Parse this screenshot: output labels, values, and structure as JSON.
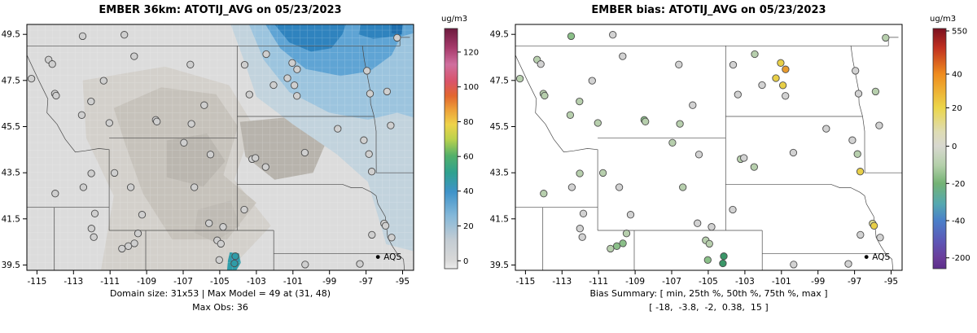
{
  "panels": {
    "left": {
      "title": "EMBER 36km: ATOTIJ_AVG on 05/23/2023",
      "caption1": "Domain size: 31x53 | Max Model = 49 at (31, 48)",
      "caption2": "Max Obs: 36"
    },
    "right": {
      "title": "EMBER bias: ATOTIJ_AVG on 05/23/2023",
      "caption1": "Bias Summary: [ min, 25th %, 50th %, 75th %, max ]",
      "caption2": "[ -18,  -3.8,  -2,  0.38,  15 ]"
    }
  },
  "chart_data": {
    "stations_legend": "AQS",
    "units": "ug/m3",
    "maps": [
      {
        "id": "left",
        "svg_id": "svg-left",
        "type": "raster-map",
        "title": "EMBER 36km: ATOTIJ_AVG on 05/23/2023",
        "units": "ug/m3",
        "value_field": "obs",
        "x_ticks": [
          -115,
          -113,
          -111,
          -109,
          -107,
          -105,
          -103,
          -101,
          -99,
          -97,
          -95
        ],
        "y_ticks": [
          39.5,
          41.5,
          43.5,
          45.5,
          47.5,
          49.5
        ],
        "xlim": [
          -115.55,
          -94.4
        ],
        "ylim": [
          39.27,
          49.93
        ],
        "domain_size": "31x53",
        "max_model": 49,
        "max_model_at": "(31, 48)",
        "max_obs": 36,
        "colorbar": {
          "ticks": [
            {
              "label": "0",
              "pos": 0.967
            },
            {
              "label": "20",
              "pos": 0.822
            },
            {
              "label": "40",
              "pos": 0.677
            },
            {
              "label": "60",
              "pos": 0.533
            },
            {
              "label": "80",
              "pos": 0.388
            },
            {
              "label": "100",
              "pos": 0.243
            },
            {
              "label": "120",
              "pos": 0.098
            }
          ],
          "stops": [
            {
              "o": 0,
              "c": "#6d1a3e"
            },
            {
              "o": 0.08,
              "c": "#a63a6b"
            },
            {
              "o": 0.15,
              "c": "#cf6f9e"
            },
            {
              "o": 0.22,
              "c": "#d9536a"
            },
            {
              "o": 0.28,
              "c": "#e2662f"
            },
            {
              "o": 0.34,
              "c": "#eda23a"
            },
            {
              "o": 0.4,
              "c": "#eed34a"
            },
            {
              "o": 0.46,
              "c": "#bcd24c"
            },
            {
              "o": 0.53,
              "c": "#52b06a"
            },
            {
              "o": 0.6,
              "c": "#2fa18f"
            },
            {
              "o": 0.68,
              "c": "#3f93c9"
            },
            {
              "o": 0.78,
              "c": "#85b8d9"
            },
            {
              "o": 0.88,
              "c": "#c3ccd3"
            },
            {
              "o": 0.965,
              "c": "#d8d8d8"
            },
            {
              "o": 1,
              "c": "#ececec"
            }
          ]
        },
        "regions": [
          {
            "color": "#d3d0cb",
            "pts": [
              [
                -112.5,
                47.5
              ],
              [
                -108,
                48.1
              ],
              [
                -104.5,
                47.3
              ],
              [
                -103.2,
                45.6
              ],
              [
                -104.2,
                43.2
              ],
              [
                -102.2,
                41.2
              ],
              [
                -104.5,
                39.27
              ],
              [
                -111.5,
                39.27
              ],
              [
                -110.8,
                42.5
              ],
              [
                -112.3,
                45.0
              ]
            ]
          },
          {
            "color": "#c6c2bb",
            "pts": [
              [
                -110.8,
                46.3
              ],
              [
                -108.2,
                47.2
              ],
              [
                -105.2,
                46.9
              ],
              [
                -104.0,
                45.5
              ],
              [
                -104.8,
                43.4
              ],
              [
                -103.0,
                42.2
              ],
              [
                -104.6,
                40.6
              ],
              [
                -107.6,
                40.6
              ],
              [
                -109.2,
                42.6
              ],
              [
                -110.2,
                44.8
              ]
            ]
          },
          {
            "color": "#b7b3ac",
            "pts": [
              [
                -103.9,
                45.7
              ],
              [
                -101.4,
                45.9
              ],
              [
                -99.2,
                44.8
              ],
              [
                -99.9,
                43.5
              ],
              [
                -102.0,
                43.2
              ],
              [
                -103.6,
                44.2
              ]
            ]
          },
          {
            "color": "#bab6af",
            "pts": [
              [
                -107.9,
                44.9
              ],
              [
                -105.7,
                45.2
              ],
              [
                -104.7,
                44.0
              ],
              [
                -105.9,
                42.9
              ],
              [
                -107.9,
                43.3
              ]
            ]
          },
          {
            "color": "#bfbbb4",
            "pts": [
              [
                -106.2,
                41.9
              ],
              [
                -104.4,
                42.3
              ],
              [
                -103.9,
                41.2
              ],
              [
                -105.3,
                40.5
              ],
              [
                -106.4,
                40.9
              ]
            ]
          },
          {
            "color": "#c2d3dd",
            "pts": [
              [
                -104.4,
                49.93
              ],
              [
                -103.6,
                48.2
              ],
              [
                -103.0,
                46.8
              ],
              [
                -101.0,
                45.6
              ],
              [
                -98.6,
                44.3
              ],
              [
                -96.9,
                43.1
              ],
              [
                -96.3,
                41.5
              ],
              [
                -95.9,
                40.4
              ],
              [
                -94.4,
                40.1
              ],
              [
                -94.4,
                49.93
              ]
            ]
          },
          {
            "color": "#9cc4de",
            "pts": [
              [
                -103.4,
                49.93
              ],
              [
                -102.6,
                48.4
              ],
              [
                -101.2,
                47.0
              ],
              [
                -99.0,
                46.1
              ],
              [
                -96.9,
                45.8
              ],
              [
                -95.3,
                46.1
              ],
              [
                -94.4,
                45.9
              ],
              [
                -94.4,
                49.93
              ]
            ]
          },
          {
            "color": "#5fa4d4",
            "pts": [
              [
                -102.5,
                49.93
              ],
              [
                -101.7,
                48.9
              ],
              [
                -100.3,
                48.0
              ],
              [
                -98.4,
                47.7
              ],
              [
                -96.8,
                47.9
              ],
              [
                -95.6,
                48.6
              ],
              [
                -95.1,
                49.4
              ],
              [
                -94.4,
                49.55
              ],
              [
                -94.4,
                49.93
              ]
            ]
          },
          {
            "color": "#2f83be",
            "pts": [
              [
                -102.0,
                49.93
              ],
              [
                -101.2,
                49.15
              ],
              [
                -100.0,
                48.75
              ],
              [
                -98.9,
                48.9
              ],
              [
                -98.3,
                49.5
              ],
              [
                -98.1,
                49.93
              ]
            ]
          },
          {
            "color": "#2f83be",
            "pts": [
              [
                -97.3,
                49.93
              ],
              [
                -95.0,
                49.93
              ],
              [
                -95.1,
                49.45
              ],
              [
                -96.6,
                49.3
              ],
              [
                -97.4,
                49.5
              ]
            ]
          },
          {
            "color": "#1f6fae",
            "pts": [
              [
                -95.6,
                49.93
              ],
              [
                -95.0,
                49.93
              ],
              [
                -95.05,
                49.5
              ],
              [
                -95.6,
                49.55
              ]
            ]
          },
          {
            "color": "#2f9ca8",
            "pts": [
              [
                -104.45,
                40.05
              ],
              [
                -103.95,
                40.0
              ],
              [
                -103.85,
                39.6
              ],
              [
                -104.1,
                39.27
              ],
              [
                -104.6,
                39.27
              ],
              [
                -104.55,
                39.7
              ]
            ]
          },
          {
            "color": "#3f93c9",
            "pts": [
              [
                -104.35,
                39.9
              ],
              [
                -104.05,
                39.85
              ],
              [
                -104.0,
                39.55
              ],
              [
                -104.35,
                39.5
              ]
            ]
          }
        ]
      },
      {
        "id": "right",
        "svg_id": "svg-right",
        "type": "scatter-map",
        "title": "EMBER bias: ATOTIJ_AVG on 05/23/2023",
        "units": "ug/m3",
        "value_field": "bias",
        "x_ticks": [
          -115,
          -113,
          -111,
          -109,
          -107,
          -105,
          -103,
          -101,
          -99,
          -97,
          -95
        ],
        "y_ticks": [
          39.5,
          41.5,
          43.5,
          45.5,
          47.5,
          49.5
        ],
        "xlim": [
          -115.55,
          -94.4
        ],
        "ylim": [
          39.27,
          49.93
        ],
        "bias_summary": {
          "min": -18,
          "p25": -3.8,
          "p50": -2,
          "p75": 0.38,
          "max": 15
        },
        "colorbar": {
          "ticks": [
            {
              "label": "550",
              "pos": 0.01
            },
            {
              "label": "40",
              "pos": 0.19
            },
            {
              "label": "20",
              "pos": 0.33
            },
            {
              "label": "0",
              "pos": 0.49
            },
            {
              "label": "-20",
              "pos": 0.645
            },
            {
              "label": "-40",
              "pos": 0.8
            },
            {
              "label": "-200",
              "pos": 0.955
            }
          ],
          "stops": [
            {
              "o": 0,
              "c": "#7a1020"
            },
            {
              "o": 0.08,
              "c": "#c03020"
            },
            {
              "o": 0.19,
              "c": "#ef8c1e"
            },
            {
              "o": 0.33,
              "c": "#ecd64a"
            },
            {
              "o": 0.43,
              "c": "#dedcb4"
            },
            {
              "o": 0.49,
              "c": "#d8d8d0"
            },
            {
              "o": 0.57,
              "c": "#b4d0aa"
            },
            {
              "o": 0.645,
              "c": "#74b374"
            },
            {
              "o": 0.73,
              "c": "#55a8b0"
            },
            {
              "o": 0.8,
              "c": "#4a7fc9"
            },
            {
              "o": 0.89,
              "c": "#5e55b5"
            },
            {
              "o": 0.955,
              "c": "#6a3d9a"
            },
            {
              "o": 1,
              "c": "#5c2d8a"
            }
          ]
        }
      }
    ],
    "stations": [
      [
        -114.36,
        48.4,
        5,
        -2
      ],
      [
        -114.16,
        48.21,
        4,
        -1
      ],
      [
        -114.02,
        46.93,
        6,
        -3
      ],
      [
        -113.95,
        46.84,
        7,
        -4
      ],
      [
        -115.3,
        47.58,
        5,
        -2
      ],
      [
        -112.5,
        49.42,
        4,
        -5
      ],
      [
        -110.22,
        49.48,
        3,
        0
      ],
      [
        -111.35,
        47.49,
        4,
        -1
      ],
      [
        -112.04,
        46.59,
        5,
        -2
      ],
      [
        -112.55,
        46.0,
        6,
        -3
      ],
      [
        -111.04,
        45.66,
        5,
        -4
      ],
      [
        -108.5,
        45.79,
        6,
        -7
      ],
      [
        -108.44,
        45.72,
        5,
        -3
      ],
      [
        -109.68,
        48.55,
        4,
        -1
      ],
      [
        -106.61,
        48.19,
        4,
        0
      ],
      [
        -105.85,
        46.43,
        5,
        -1
      ],
      [
        -106.55,
        45.62,
        4,
        -2
      ],
      [
        -103.64,
        48.18,
        7,
        -1
      ],
      [
        -102.46,
        48.64,
        6,
        -2
      ],
      [
        -101.04,
        48.26,
        8,
        9
      ],
      [
        -100.77,
        47.98,
        9,
        15
      ],
      [
        -101.3,
        47.6,
        8,
        10
      ],
      [
        -100.92,
        47.29,
        7,
        8
      ],
      [
        -102.06,
        47.3,
        6,
        2
      ],
      [
        -103.38,
        46.89,
        5,
        -1
      ],
      [
        -100.78,
        46.83,
        6,
        1
      ],
      [
        -96.78,
        46.93,
        7,
        0
      ],
      [
        -96.95,
        47.92,
        6,
        -1
      ],
      [
        -95.3,
        49.35,
        5,
        -2
      ],
      [
        -95.85,
        47.02,
        5,
        -3
      ],
      [
        -95.65,
        45.55,
        6,
        -1
      ],
      [
        -103.23,
        44.09,
        6,
        -2
      ],
      [
        -103.05,
        44.14,
        5,
        -1
      ],
      [
        -102.49,
        43.75,
        4,
        -2
      ],
      [
        -100.35,
        44.37,
        5,
        1
      ],
      [
        -98.55,
        45.41,
        5,
        -1
      ],
      [
        -96.69,
        43.55,
        9,
        12
      ],
      [
        -96.84,
        44.31,
        6,
        -2
      ],
      [
        -97.12,
        44.91,
        5,
        0
      ],
      [
        -103.66,
        41.9,
        4,
        -1
      ],
      [
        -96.01,
        41.3,
        8,
        3
      ],
      [
        -95.93,
        41.2,
        9,
        8
      ],
      [
        -96.68,
        40.81,
        7,
        1
      ],
      [
        -95.6,
        40.69,
        6,
        2
      ],
      [
        -97.34,
        39.55,
        6,
        2
      ],
      [
        -100.33,
        39.52,
        5,
        1
      ],
      [
        -105.14,
        40.57,
        8,
        -3
      ],
      [
        -104.94,
        40.42,
        7,
        -2
      ],
      [
        -105.03,
        39.72,
        12,
        -6
      ],
      [
        -104.15,
        39.88,
        36,
        -18
      ],
      [
        -104.2,
        39.57,
        30,
        -15
      ],
      [
        -104.82,
        41.15,
        5,
        0
      ],
      [
        -105.59,
        41.31,
        4,
        -1
      ],
      [
        -106.39,
        42.87,
        5,
        -2
      ],
      [
        -106.96,
        44.8,
        5,
        -3
      ],
      [
        -105.51,
        44.29,
        4,
        -1
      ],
      [
        -109.87,
        42.87,
        4,
        -1
      ],
      [
        -109.25,
        41.68,
        5,
        -1
      ],
      [
        -110.76,
        43.49,
        4,
        -2
      ],
      [
        -111.89,
        40.71,
        8,
        1
      ],
      [
        -112.02,
        41.08,
        7,
        0
      ],
      [
        -111.83,
        41.73,
        7,
        -1
      ],
      [
        -110.0,
        40.32,
        6,
        -5
      ],
      [
        -109.67,
        40.44,
        6,
        -6
      ],
      [
        -110.35,
        40.21,
        5,
        -4
      ],
      [
        -109.47,
        40.87,
        5,
        -3
      ],
      [
        -112.03,
        43.47,
        5,
        -2
      ],
      [
        -112.46,
        42.87,
        5,
        -1
      ],
      [
        -114.0,
        42.6,
        4,
        -2
      ]
    ]
  }
}
